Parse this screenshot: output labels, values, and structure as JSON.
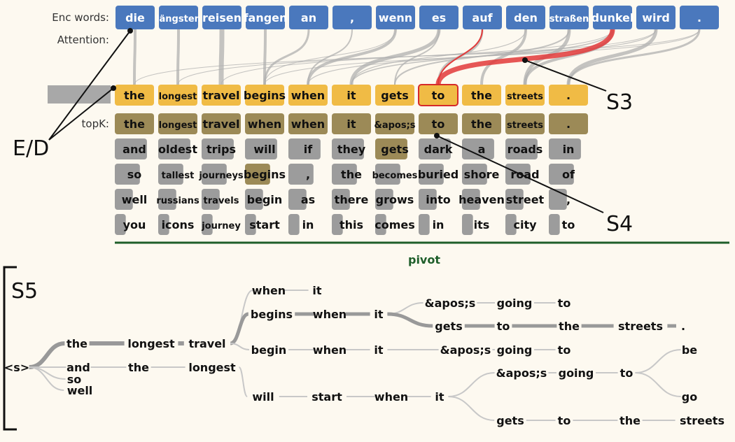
{
  "labels": {
    "enc_words": "Enc words:",
    "attention": "Attention:",
    "topk": "topK:",
    "pivot": "pivot",
    "ed": "E/D",
    "s3": "S3",
    "s4": "S4",
    "s5": "S5"
  },
  "colors": {
    "encoder": "#4a78bd",
    "decoder": "#f0bb45",
    "topk_selected": "#9c8a57",
    "topk_other": "#9c9c9c",
    "attention": "#b0b0b0",
    "attention_highlight": "#e23a3a",
    "pivot": "#1e5e2a",
    "background": "#fdf9f0"
  },
  "encoder_words": [
    "die",
    "längsten",
    "reisen",
    "fangen",
    "an",
    ",",
    "wenn",
    "es",
    "auf",
    "den",
    "straßen",
    "dunkel",
    "wird",
    "."
  ],
  "decoder_words": [
    "the",
    "longest",
    "travel",
    "begins",
    "when",
    "it",
    "gets",
    "to",
    "the",
    "streets",
    "."
  ],
  "highlighted_decoder_index": 7,
  "topk": [
    [
      "the",
      "and",
      "so",
      "well",
      "you"
    ],
    [
      "longest",
      "oldest",
      "tallest",
      "russians",
      "icons"
    ],
    [
      "travel",
      "trips",
      "journeys",
      "travels",
      "journey"
    ],
    [
      "when",
      "will",
      "begins",
      "begin",
      "start"
    ],
    [
      "when",
      "if",
      ",",
      "as",
      "in"
    ],
    [
      "it",
      "they",
      "the",
      "there",
      "this"
    ],
    [
      "&apos;s",
      "gets",
      "becomes",
      "grows",
      "comes"
    ],
    [
      "to",
      "dark",
      "buried",
      "into",
      "in"
    ],
    [
      "the",
      "a",
      "shore",
      "heaven",
      "its"
    ],
    [
      "streets",
      "roads",
      "road",
      "street",
      "city"
    ],
    [
      ".",
      "in",
      "of",
      ",",
      "to"
    ]
  ],
  "beam_tree": {
    "root": "<s>",
    "words": {
      "root": "<s>",
      "w_the": "the",
      "w_longest": "longest",
      "w_travel": "travel",
      "w_when1": "when",
      "w_it1": "it",
      "w_begins": "begins",
      "w_when2": "when",
      "w_it2": "it",
      "w_apos1": "&apos;s",
      "w_going1": "going",
      "w_to1": "to",
      "w_gets1": "gets",
      "w_to2": "to",
      "w_the2": "the",
      "w_streets1": "streets",
      "w_dot": ".",
      "w_begin": "begin",
      "w_when3": "when",
      "w_it3": "it",
      "w_apos2": "&apos;s",
      "w_going2": "going",
      "w_to3": "to",
      "w_and": "and",
      "w_so": "so",
      "w_well": "well",
      "w_the3": "the",
      "w_longest2": "longest",
      "w_will": "will",
      "w_start": "start",
      "w_when4": "when",
      "w_it4": "it",
      "w_apos3": "&apos;s",
      "w_going3": "going",
      "w_to4": "to",
      "w_be": "be",
      "w_go": "go",
      "w_gets2": "gets",
      "w_to5": "to",
      "w_the4": "the",
      "w_streets2": "streets"
    }
  }
}
